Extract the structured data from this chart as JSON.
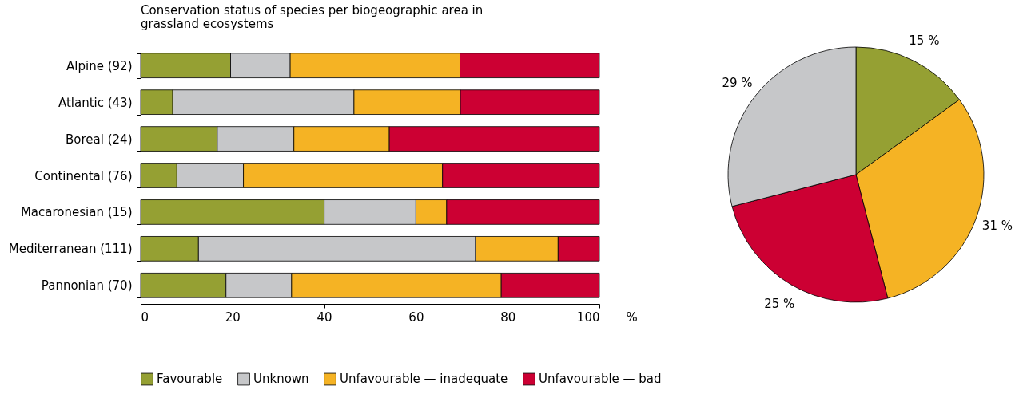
{
  "chart_data": [
    {
      "type": "bar",
      "title": "Conservation status of species per biogeographic area in grassland ecosystems",
      "orientation": "horizontal",
      "stacked": true,
      "xlabel": "%",
      "categories": [
        "Alpine (92)",
        "Atlantic (43)",
        "Boreal (24)",
        "Continental (76)",
        "Macaronesian (15)",
        "Mediterranean (111)",
        "Pannonian (70)"
      ],
      "series": [
        {
          "name": "Favourable",
          "color": "#95a033",
          "values": [
            19.6,
            7.0,
            16.7,
            7.9,
            40.0,
            12.6,
            18.6
          ]
        },
        {
          "name": "Unknown",
          "color": "#c6c7c9",
          "values": [
            13.0,
            39.5,
            16.7,
            14.5,
            20.0,
            60.4,
            14.3
          ]
        },
        {
          "name": "Unfavourable — inadequate",
          "color": "#f5b324",
          "values": [
            37.0,
            23.2,
            20.8,
            43.4,
            6.7,
            18.0,
            45.7
          ]
        },
        {
          "name": "Unfavourable — bad",
          "color": "#cc0033",
          "values": [
            30.4,
            30.3,
            45.8,
            34.2,
            33.3,
            9.0,
            21.4
          ]
        }
      ],
      "xlim": [
        0,
        100
      ],
      "xticks": [
        0,
        20,
        40,
        60,
        80,
        100
      ],
      "grid": false,
      "legend": "bottom"
    },
    {
      "type": "pie",
      "categories": [
        null,
        null,
        null,
        null
      ],
      "values": [
        15,
        31,
        25,
        29
      ],
      "colors": [
        "#95a033",
        "#f5b324",
        "#cc0033",
        "#c6c7c9"
      ],
      "value_labels": [
        "15 %",
        "31 %",
        "25 %",
        "29 %"
      ]
    }
  ]
}
